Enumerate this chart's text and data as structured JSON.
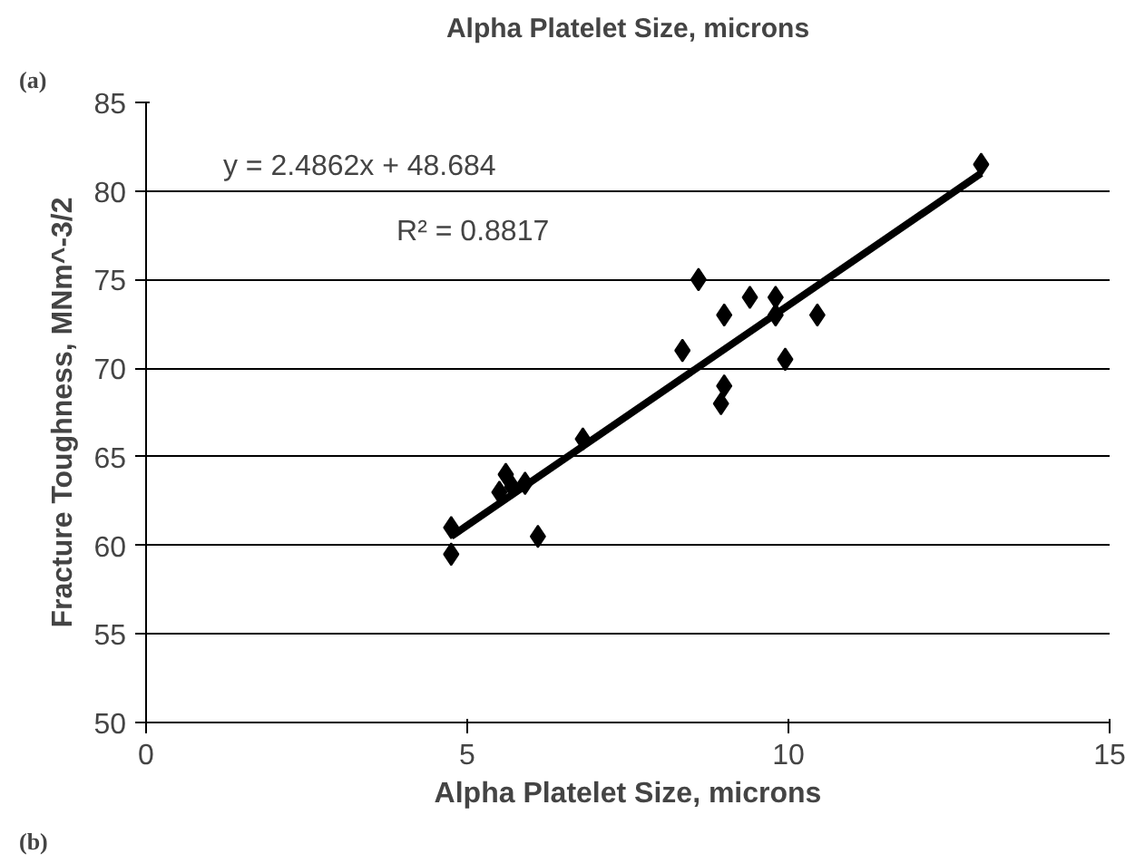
{
  "chart_data": {
    "type": "scatter",
    "title": "Alpha Platelet Size, microns",
    "xlabel": "Alpha Platelet Size, microns",
    "ylabel": "Fracture Toughness, MNm^-3/2",
    "annotations": [
      "(a)",
      "(b)",
      "y = 2.4862x + 48.684",
      "R² = 0.8817"
    ],
    "xlim": [
      0,
      15
    ],
    "ylim": [
      50,
      85
    ],
    "xticks": [
      0,
      5,
      10,
      15
    ],
    "yticks": [
      50,
      55,
      60,
      65,
      70,
      75,
      80,
      85
    ],
    "grid": "y",
    "marker": "diamond",
    "series": [
      {
        "color": "#000000",
        "x": [
          4.75,
          4.75,
          5.5,
          5.6,
          5.7,
          5.9,
          6.1,
          6.8,
          8.35,
          8.6,
          8.95,
          9.0,
          9.0,
          9.4,
          9.8,
          9.8,
          9.95,
          10.45,
          13.0
        ],
        "values": [
          61,
          59.5,
          63,
          64,
          63.3,
          63.5,
          60.5,
          66,
          71,
          75,
          68,
          69,
          73,
          74,
          74,
          73,
          70.5,
          73,
          81.5
        ]
      },
      {
        "type": "line",
        "color": "#000000",
        "marker": "none",
        "x": [
          4.75,
          13.0
        ],
        "values": [
          60.5,
          81.0
        ]
      }
    ]
  }
}
